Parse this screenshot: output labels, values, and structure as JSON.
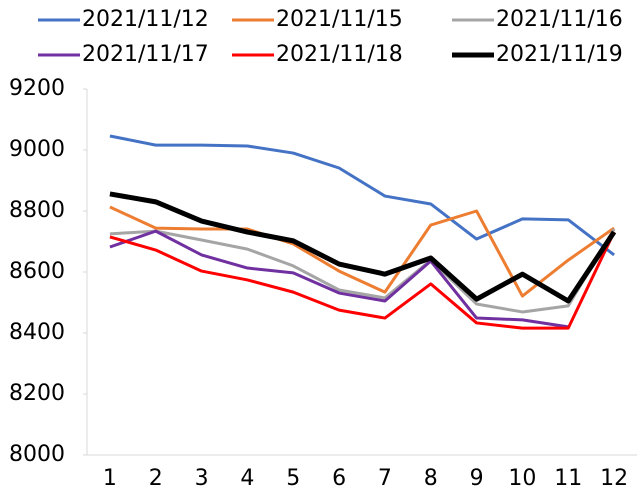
{
  "chart_data": {
    "type": "line",
    "categories": [
      "1",
      "2",
      "3",
      "4",
      "5",
      "6",
      "7",
      "8",
      "9",
      "10",
      "11",
      "12"
    ],
    "series": [
      {
        "name": "2021/11/12",
        "color": "#4472c4",
        "values": [
          9046,
          9016,
          9016,
          9013,
          8990,
          8941,
          8849,
          8823,
          8708,
          8774,
          8771,
          8656
        ]
      },
      {
        "name": "2021/11/15",
        "color": "#ed7d31",
        "values": [
          8813,
          8744,
          8741,
          8741,
          8692,
          8603,
          8534,
          8754,
          8800,
          8521,
          8639,
          8744
        ]
      },
      {
        "name": "2021/11/16",
        "color": "#a5a5a5",
        "values": [
          8725,
          8734,
          8705,
          8675,
          8620,
          8541,
          8515,
          8639,
          8495,
          8469,
          8489,
          8741
        ]
      },
      {
        "name": "2021/11/17",
        "color": "#7030a0",
        "values": [
          8682,
          8734,
          8656,
          8613,
          8597,
          8531,
          8505,
          8636,
          8449,
          8443,
          8420,
          null
        ]
      },
      {
        "name": "2021/11/18",
        "color": "#ff0000",
        "values": [
          8715,
          8672,
          8603,
          8574,
          8534,
          8475,
          8449,
          8561,
          8433,
          8416,
          8416,
          8731
        ]
      },
      {
        "name": "2021/11/19",
        "color": "#000000",
        "values": [
          8856,
          8830,
          8767,
          8731,
          8702,
          8626,
          8593,
          8646,
          8511,
          8593,
          8505,
          8731
        ]
      }
    ],
    "ylim": [
      8000,
      9200
    ],
    "yticks": [
      8000,
      8200,
      8400,
      8600,
      8800,
      9000,
      9200
    ],
    "grid": false
  }
}
